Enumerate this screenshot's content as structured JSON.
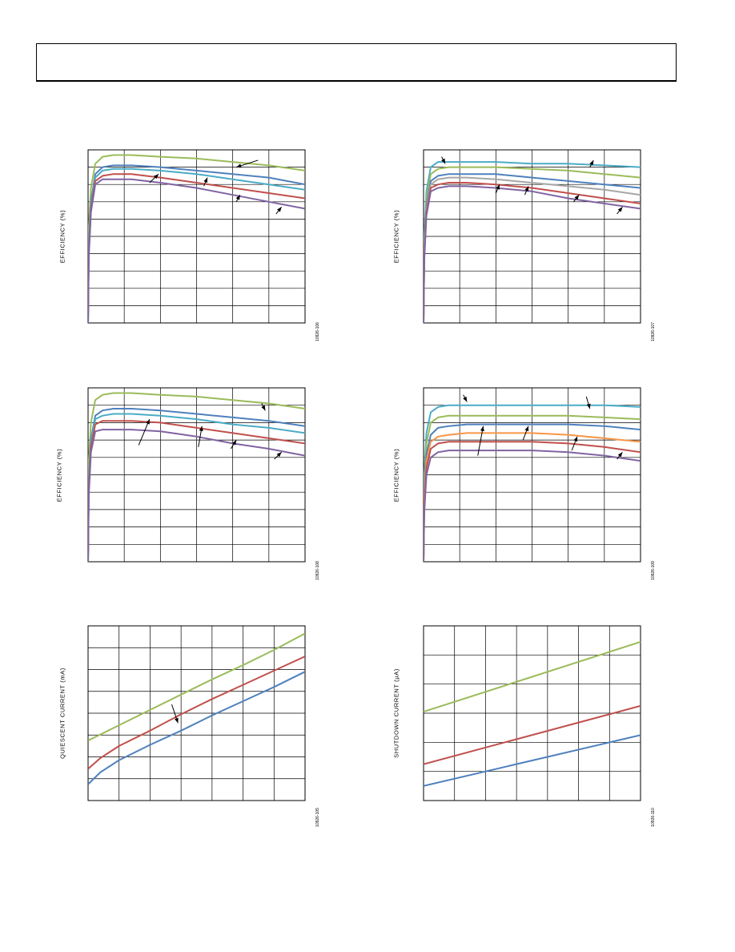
{
  "page": {
    "header": {
      "title": ""
    },
    "figure_ids": [
      "10926-106",
      "10926-107",
      "10926-108",
      "10926-109",
      "10926-105",
      "10926-110"
    ]
  },
  "colors": {
    "green": "#9bbb59",
    "teal": "#4bacc6",
    "blue": "#4f81bd",
    "red": "#c0504d",
    "purple": "#8064a2",
    "orange": "#f79646",
    "gray": "#a6a6a6"
  },
  "chart_data": [
    {
      "type": "line",
      "ylabel": "EFFICIENCY (%)",
      "figure_id": "10926-106",
      "grid": true,
      "xlim": [
        0,
        6
      ],
      "ylim": [
        0,
        100
      ],
      "x_gridlines": [
        0,
        1,
        2,
        3,
        4,
        5,
        6
      ],
      "y_gridlines": [
        0,
        10,
        20,
        30,
        40,
        50,
        60,
        70,
        80,
        90,
        100
      ],
      "series": [
        {
          "color": "green",
          "x": [
            0,
            0.02,
            0.08,
            0.2,
            0.4,
            0.7,
            1.2,
            2,
            3,
            4,
            5,
            6
          ],
          "y": [
            0,
            55,
            78,
            92,
            96,
            97,
            97,
            96,
            95,
            93,
            91,
            88
          ]
        },
        {
          "color": "blue",
          "x": [
            0,
            0.02,
            0.08,
            0.2,
            0.4,
            0.7,
            1.2,
            2,
            3,
            4,
            5,
            6
          ],
          "y": [
            0,
            45,
            70,
            86,
            90,
            91,
            91,
            90,
            88,
            86,
            84,
            80
          ]
        },
        {
          "color": "teal",
          "x": [
            0,
            0.02,
            0.08,
            0.2,
            0.4,
            0.7,
            1.2,
            2,
            3,
            4,
            5,
            6
          ],
          "y": [
            0,
            42,
            68,
            84,
            88,
            89,
            89,
            88,
            86,
            83,
            80,
            77
          ]
        },
        {
          "color": "red",
          "x": [
            0,
            0.02,
            0.08,
            0.2,
            0.4,
            0.7,
            1.2,
            2,
            3,
            4,
            5,
            6
          ],
          "y": [
            0,
            40,
            66,
            82,
            85,
            86,
            86,
            84,
            81,
            78,
            75,
            72
          ]
        },
        {
          "color": "purple",
          "x": [
            0,
            0.02,
            0.08,
            0.2,
            0.4,
            0.7,
            1.2,
            2,
            3,
            4,
            5,
            6
          ],
          "y": [
            0,
            38,
            64,
            80,
            83,
            83,
            83,
            81,
            78,
            74,
            70,
            66
          ]
        }
      ],
      "callouts": [
        [
          4.7,
          4.1,
          94,
          90
        ],
        [
          1.7,
          1.95,
          81,
          86
        ],
        [
          3.2,
          3.3,
          79,
          84
        ],
        [
          4.1,
          4.2,
          70,
          74
        ],
        [
          5.2,
          5.35,
          63,
          67
        ]
      ]
    },
    {
      "type": "line",
      "ylabel": "EFFICIENCY (%)",
      "figure_id": "10926-107",
      "grid": true,
      "xlim": [
        0,
        6
      ],
      "ylim": [
        0,
        100
      ],
      "x_gridlines": [
        0,
        1,
        2,
        3,
        4,
        5,
        6
      ],
      "y_gridlines": [
        0,
        10,
        20,
        30,
        40,
        50,
        60,
        70,
        80,
        90,
        100
      ],
      "series": [
        {
          "color": "teal",
          "x": [
            0,
            0.02,
            0.08,
            0.2,
            0.4,
            0.7,
            1.2,
            2,
            3,
            4,
            5,
            6
          ],
          "y": [
            0,
            50,
            76,
            90,
            93,
            93,
            93,
            93,
            92,
            92,
            91,
            90
          ]
        },
        {
          "color": "green",
          "x": [
            0,
            0.02,
            0.08,
            0.2,
            0.4,
            0.7,
            1.2,
            2,
            3,
            4,
            5,
            6
          ],
          "y": [
            0,
            46,
            72,
            86,
            89,
            90,
            90,
            90,
            89,
            88,
            86,
            84
          ]
        },
        {
          "color": "blue",
          "x": [
            0,
            0.02,
            0.08,
            0.2,
            0.4,
            0.7,
            1.2,
            2,
            3,
            4,
            5,
            6
          ],
          "y": [
            0,
            42,
            68,
            82,
            85,
            86,
            86,
            86,
            84,
            82,
            80,
            78
          ]
        },
        {
          "color": "gray",
          "x": [
            0,
            0.02,
            0.08,
            0.2,
            0.4,
            0.7,
            1.2,
            2,
            3,
            4,
            5,
            6
          ],
          "y": [
            0,
            40,
            66,
            80,
            83,
            84,
            84,
            83,
            81,
            79,
            77,
            74
          ]
        },
        {
          "color": "red",
          "x": [
            0,
            0.02,
            0.08,
            0.2,
            0.4,
            0.7,
            1.2,
            2,
            3,
            4,
            5,
            6
          ],
          "y": [
            0,
            38,
            64,
            78,
            80,
            81,
            81,
            80,
            78,
            75,
            72,
            69
          ]
        },
        {
          "color": "purple",
          "x": [
            0,
            0.02,
            0.08,
            0.2,
            0.4,
            0.7,
            1.2,
            2,
            3,
            4,
            5,
            6
          ],
          "y": [
            0,
            36,
            62,
            76,
            78,
            79,
            79,
            78,
            76,
            72,
            69,
            66
          ]
        }
      ],
      "callouts": [
        [
          0.5,
          0.6,
          96,
          92
        ],
        [
          4.6,
          4.7,
          90,
          94
        ],
        [
          2,
          2.1,
          75,
          80
        ],
        [
          2.8,
          2.9,
          74,
          79
        ],
        [
          4.15,
          4.3,
          70,
          74
        ],
        [
          5.35,
          5.5,
          63,
          67
        ]
      ]
    },
    {
      "type": "line",
      "ylabel": "EFFICIENCY (%)",
      "figure_id": "10926-108",
      "grid": true,
      "xlim": [
        0,
        6
      ],
      "ylim": [
        0,
        100
      ],
      "x_gridlines": [
        0,
        1,
        2,
        3,
        4,
        5,
        6
      ],
      "y_gridlines": [
        0,
        10,
        20,
        30,
        40,
        50,
        60,
        70,
        80,
        90,
        100
      ],
      "series": [
        {
          "color": "green",
          "x": [
            0,
            0.02,
            0.08,
            0.2,
            0.4,
            0.7,
            1.2,
            2,
            3,
            4,
            5,
            6
          ],
          "y": [
            0,
            58,
            80,
            93,
            96,
            97,
            97,
            96,
            95,
            93,
            91,
            88
          ]
        },
        {
          "color": "blue",
          "x": [
            0,
            0.02,
            0.08,
            0.2,
            0.4,
            0.7,
            1.2,
            2,
            3,
            4,
            5,
            6
          ],
          "y": [
            0,
            46,
            70,
            84,
            87,
            88,
            88,
            87,
            85,
            83,
            81,
            78
          ]
        },
        {
          "color": "teal",
          "x": [
            0,
            0.02,
            0.08,
            0.2,
            0.4,
            0.7,
            1.2,
            2,
            3,
            4,
            5,
            6
          ],
          "y": [
            0,
            44,
            68,
            82,
            84,
            85,
            85,
            84,
            82,
            79,
            77,
            74
          ]
        },
        {
          "color": "red",
          "x": [
            0,
            0.02,
            0.08,
            0.2,
            0.4,
            0.7,
            1.2,
            2,
            3,
            4,
            5,
            6
          ],
          "y": [
            0,
            42,
            66,
            79,
            81,
            81,
            81,
            80,
            77,
            74,
            71,
            68
          ]
        },
        {
          "color": "purple",
          "x": [
            0,
            0.02,
            0.08,
            0.2,
            0.4,
            0.7,
            1.2,
            2,
            3,
            4,
            5,
            6
          ],
          "y": [
            0,
            38,
            63,
            75,
            76,
            76,
            76,
            75,
            72,
            68,
            65,
            61
          ]
        }
      ],
      "callouts": [
        [
          4.8,
          4.9,
          91,
          87
        ],
        [
          1.4,
          1.7,
          67,
          82
        ],
        [
          3.05,
          3.15,
          66,
          78
        ],
        [
          3.95,
          4.1,
          65,
          70
        ],
        [
          5.15,
          5.35,
          59,
          63
        ]
      ]
    },
    {
      "type": "line",
      "ylabel": "EFFICIENCY (%)",
      "figure_id": "10926-109",
      "grid": true,
      "xlim": [
        0,
        6
      ],
      "ylim": [
        0,
        100
      ],
      "x_gridlines": [
        0,
        1,
        2,
        3,
        4,
        5,
        6
      ],
      "y_gridlines": [
        0,
        10,
        20,
        30,
        40,
        50,
        60,
        70,
        80,
        90,
        100
      ],
      "series": [
        {
          "color": "teal",
          "x": [
            0,
            0.02,
            0.08,
            0.2,
            0.4,
            0.7,
            1.2,
            2,
            3,
            4,
            5,
            6
          ],
          "y": [
            0,
            50,
            74,
            86,
            89,
            90,
            90,
            90,
            90,
            90,
            90,
            89
          ]
        },
        {
          "color": "green",
          "x": [
            0,
            0.02,
            0.08,
            0.2,
            0.4,
            0.7,
            1.2,
            2,
            3,
            4,
            5,
            6
          ],
          "y": [
            0,
            44,
            68,
            80,
            83,
            84,
            84,
            84,
            84,
            84,
            83,
            82
          ]
        },
        {
          "color": "blue",
          "x": [
            0,
            0.02,
            0.08,
            0.2,
            0.4,
            0.7,
            1.2,
            2,
            3,
            4,
            5,
            6
          ],
          "y": [
            0,
            40,
            62,
            73,
            77,
            78,
            79,
            79,
            79,
            79,
            78,
            76
          ]
        },
        {
          "color": "orange",
          "x": [
            0,
            0.02,
            0.08,
            0.2,
            0.4,
            0.7,
            1.2,
            2,
            3,
            4,
            5,
            6
          ],
          "y": [
            0,
            36,
            58,
            69,
            72,
            73,
            74,
            74,
            74,
            73,
            71,
            69
          ]
        },
        {
          "color": "red",
          "x": [
            0,
            0.02,
            0.08,
            0.2,
            0.4,
            0.7,
            1.2,
            2,
            3,
            4,
            5,
            6
          ],
          "y": [
            0,
            32,
            54,
            65,
            68,
            69,
            69,
            69,
            69,
            68,
            66,
            63
          ]
        },
        {
          "color": "purple",
          "x": [
            0,
            0.02,
            0.08,
            0.2,
            0.4,
            0.7,
            1.2,
            2,
            3,
            4,
            5,
            6
          ],
          "y": [
            0,
            28,
            50,
            60,
            63,
            64,
            64,
            64,
            64,
            63,
            61,
            58
          ]
        }
      ],
      "callouts": [
        [
          1.1,
          1.2,
          96,
          92
        ],
        [
          4.5,
          4.6,
          95,
          88
        ],
        [
          1.5,
          1.65,
          61,
          78
        ],
        [
          2.75,
          2.9,
          70,
          78
        ],
        [
          4.1,
          4.25,
          64,
          72
        ],
        [
          5.35,
          5.5,
          59,
          63
        ]
      ]
    },
    {
      "type": "line",
      "ylabel": "QUIESCENT CURRENT (mA)",
      "figure_id": "10926-105",
      "grid": true,
      "xlim": [
        0,
        7
      ],
      "ylim": [
        0,
        8
      ],
      "x_gridlines": [
        0,
        1,
        2,
        3,
        4,
        5,
        6,
        7
      ],
      "y_gridlines": [
        0,
        1,
        2,
        3,
        4,
        5,
        6,
        7,
        8
      ],
      "series": [
        {
          "color": "green",
          "x": [
            0,
            1,
            2,
            3,
            4,
            5,
            6,
            7
          ],
          "y": [
            2.75,
            3.45,
            4.15,
            4.85,
            5.55,
            6.2,
            6.9,
            7.65
          ]
        },
        {
          "color": "red",
          "x": [
            0,
            0.4,
            1,
            2,
            3,
            4,
            5,
            6,
            7
          ],
          "y": [
            1.45,
            1.95,
            2.5,
            3.2,
            3.95,
            4.65,
            5.3,
            5.95,
            6.6
          ]
        },
        {
          "color": "blue",
          "x": [
            0,
            0.4,
            1,
            2,
            3,
            4,
            5,
            6,
            7
          ],
          "y": [
            0.75,
            1.3,
            1.85,
            2.55,
            3.2,
            3.9,
            4.55,
            5.2,
            5.9
          ]
        }
      ],
      "callouts": [
        [
          2.7,
          2.9,
          4.4,
          3.55
        ]
      ]
    },
    {
      "type": "line",
      "ylabel": "SHUTDOWN CURRENT (µA)",
      "figure_id": "10926-110",
      "grid": true,
      "xlim": [
        0,
        7
      ],
      "ylim": [
        0,
        6
      ],
      "x_gridlines": [
        0,
        1,
        2,
        3,
        4,
        5,
        6,
        7
      ],
      "y_gridlines": [
        0,
        1,
        2,
        3,
        4,
        5,
        6
      ],
      "series": [
        {
          "color": "green",
          "x": [
            0,
            7
          ],
          "y": [
            3.05,
            5.45
          ]
        },
        {
          "color": "red",
          "x": [
            0,
            7
          ],
          "y": [
            1.25,
            3.25
          ]
        },
        {
          "color": "blue",
          "x": [
            0,
            7
          ],
          "y": [
            0.5,
            2.25
          ]
        }
      ],
      "callouts": []
    }
  ]
}
